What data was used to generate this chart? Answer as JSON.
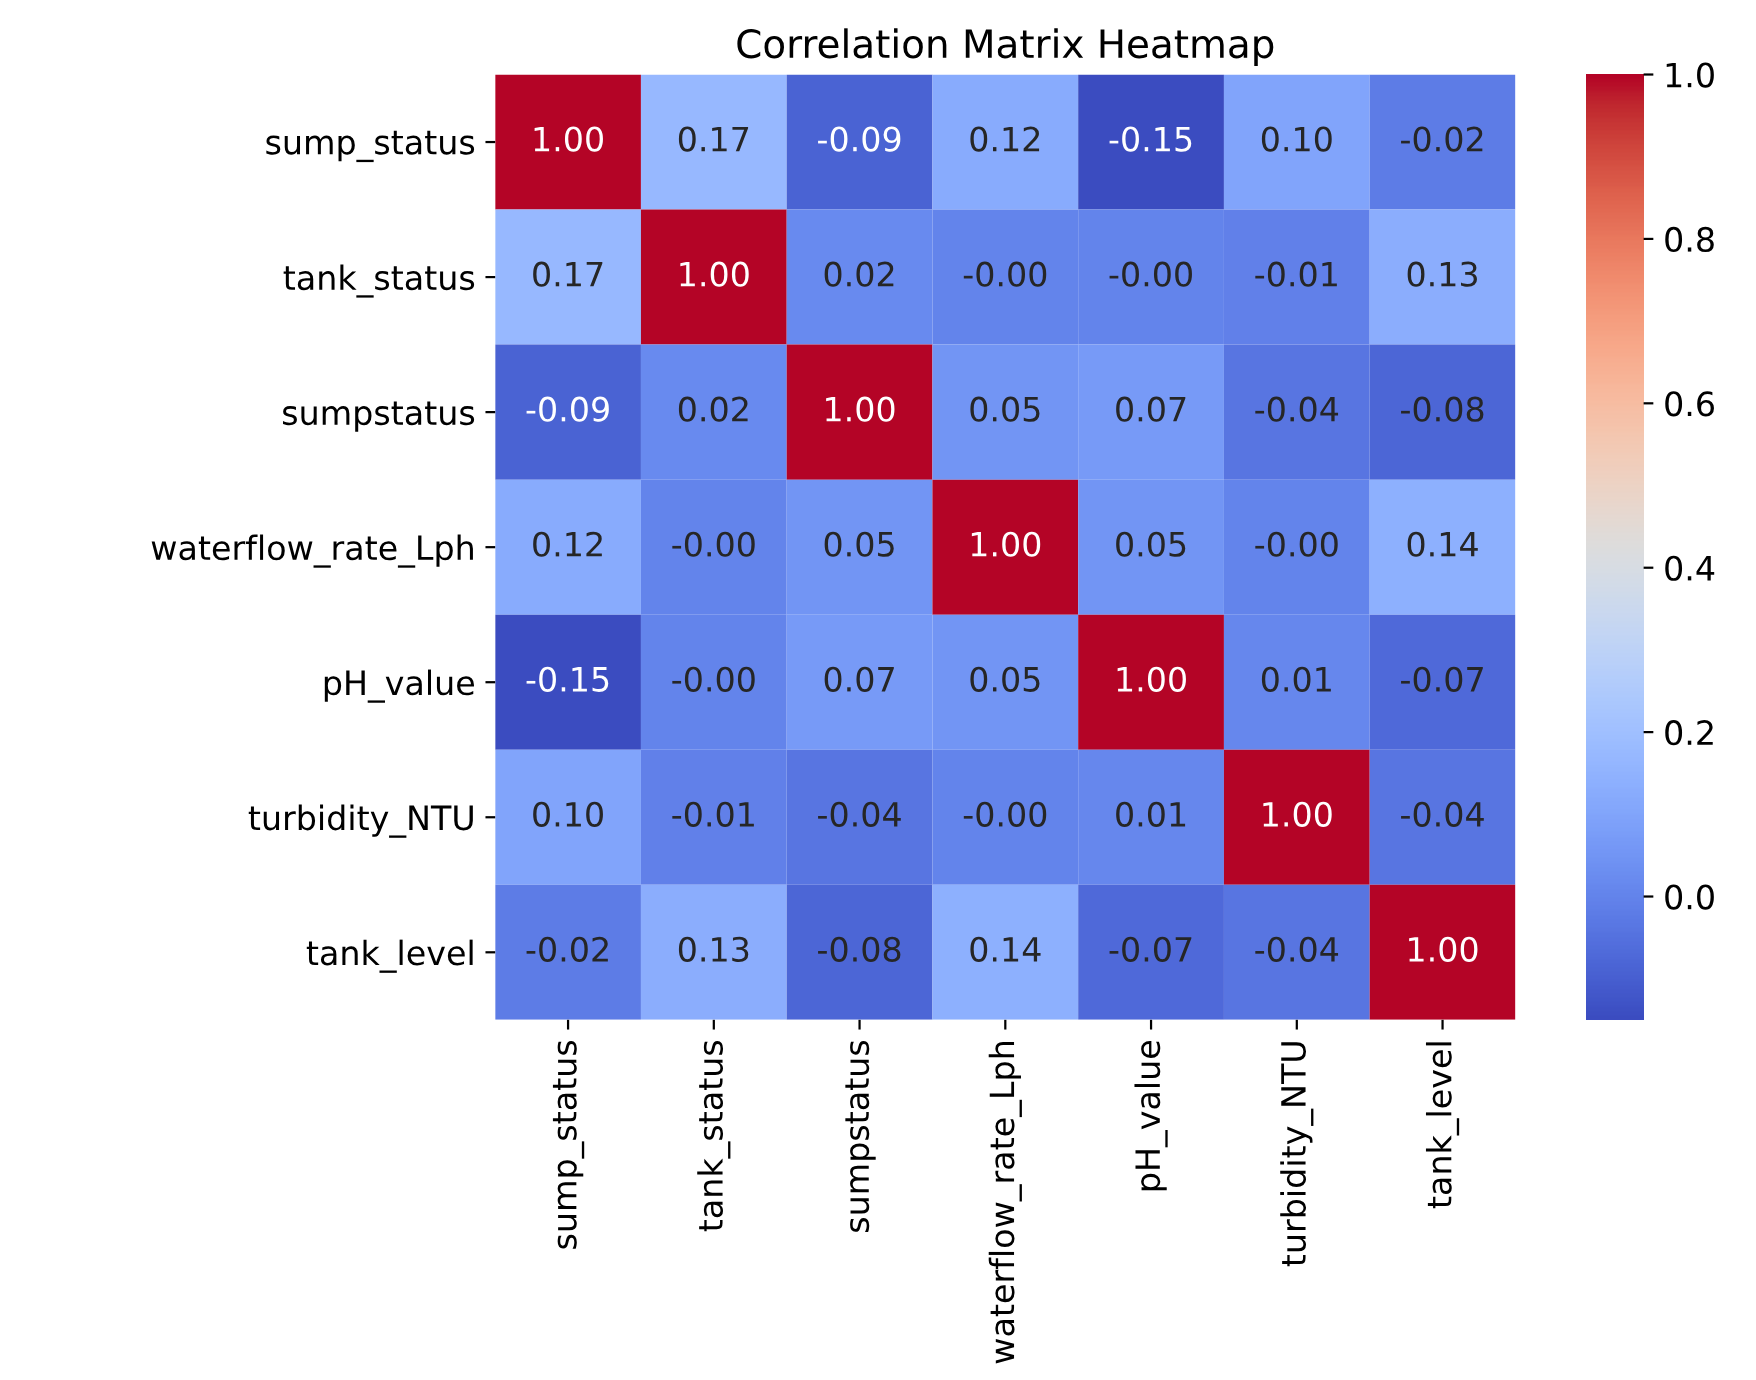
{
  "chart_data": {
    "type": "heatmap",
    "title": "Correlation Matrix Heatmap",
    "categories": [
      "sump_status",
      "tank_status",
      "sumpstatus",
      "waterflow_rate_Lph",
      "pH_value",
      "turbidity_NTU",
      "tank_level"
    ],
    "y_categories": [
      "sump_status",
      "tank_status",
      "sumpstatus",
      "waterflow_rate_Lph",
      "pH_value",
      "turbidity_NTU",
      "tank_level"
    ],
    "cells": [
      [
        1.0,
        0.17,
        -0.09,
        0.12,
        -0.15,
        0.1,
        -0.02
      ],
      [
        0.17,
        1.0,
        0.02,
        -0.0,
        -0.0,
        -0.01,
        0.13
      ],
      [
        -0.09,
        0.02,
        1.0,
        0.05,
        0.07,
        -0.04,
        -0.08
      ],
      [
        0.12,
        -0.0,
        0.05,
        1.0,
        0.05,
        -0.0,
        0.14
      ],
      [
        -0.15,
        -0.0,
        0.07,
        0.05,
        1.0,
        0.01,
        -0.07
      ],
      [
        0.1,
        -0.01,
        -0.04,
        -0.0,
        0.01,
        1.0,
        -0.04
      ],
      [
        -0.02,
        0.13,
        -0.08,
        0.14,
        -0.07,
        -0.04,
        1.0
      ]
    ],
    "cell_labels": [
      [
        "1.00",
        "0.17",
        "-0.09",
        "0.12",
        "-0.15",
        "0.10",
        "-0.02"
      ],
      [
        "0.17",
        "1.00",
        "0.02",
        "-0.00",
        "-0.00",
        "-0.01",
        "0.13"
      ],
      [
        "-0.09",
        "0.02",
        "1.00",
        "0.05",
        "0.07",
        "-0.04",
        "-0.08"
      ],
      [
        "0.12",
        "-0.00",
        "0.05",
        "1.00",
        "0.05",
        "-0.00",
        "0.14"
      ],
      [
        "-0.15",
        "-0.00",
        "0.07",
        "0.05",
        "1.00",
        "0.01",
        "-0.07"
      ],
      [
        "0.10",
        "-0.01",
        "-0.04",
        "-0.00",
        "0.01",
        "1.00",
        "-0.04"
      ],
      [
        "-0.02",
        "0.13",
        "-0.08",
        "0.14",
        "-0.07",
        "-0.04",
        "1.00"
      ]
    ],
    "clim": [
      -0.15,
      1.0
    ],
    "cticks": [
      {
        "value": 0.0,
        "label": "0.0"
      },
      {
        "value": 0.2,
        "label": "0.2"
      },
      {
        "value": 0.4,
        "label": "0.4"
      },
      {
        "value": 0.6,
        "label": "0.6"
      },
      {
        "value": 0.8,
        "label": "0.8"
      },
      {
        "value": 1.0,
        "label": "1.0"
      }
    ]
  }
}
